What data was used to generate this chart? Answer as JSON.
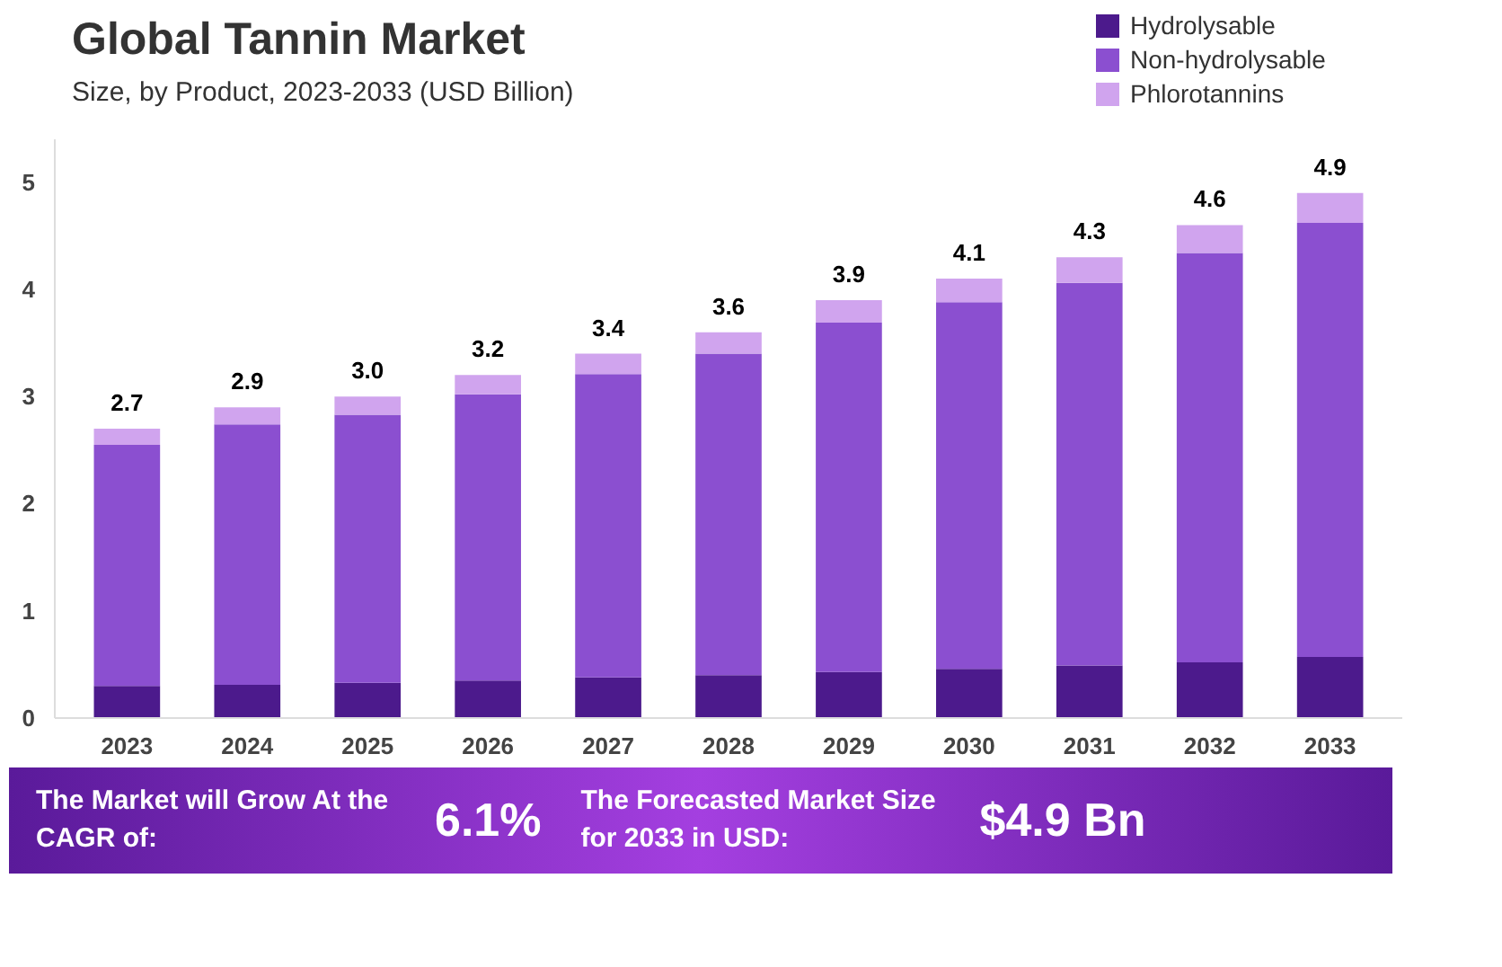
{
  "chart_data": {
    "type": "bar",
    "title": "Global Tannin Market",
    "subtitle": "Size, by Product, 2023-2033 (USD Billion)",
    "categories": [
      "2023",
      "2024",
      "2025",
      "2026",
      "2027",
      "2028",
      "2029",
      "2030",
      "2031",
      "2032",
      "2033"
    ],
    "stacked": true,
    "series": [
      {
        "name": "Hydrolysable",
        "color": "#4c1a8c",
        "values": [
          0.3,
          0.31,
          0.33,
          0.35,
          0.38,
          0.4,
          0.43,
          0.46,
          0.49,
          0.52,
          0.57
        ]
      },
      {
        "name": "Non-hydrolysable",
        "color": "#8b4fd0",
        "values": [
          2.25,
          2.43,
          2.5,
          2.67,
          2.83,
          3.0,
          3.26,
          3.42,
          3.57,
          3.82,
          4.05
        ]
      },
      {
        "name": "Phlorotannins",
        "color": "#d0a4ee",
        "values": [
          0.15,
          0.16,
          0.17,
          0.18,
          0.19,
          0.2,
          0.21,
          0.22,
          0.24,
          0.26,
          0.28
        ]
      }
    ],
    "totals": [
      "2.7",
      "2.9",
      "3.0",
      "3.2",
      "3.4",
      "3.6",
      "3.9",
      "4.1",
      "4.3",
      "4.6",
      "4.9"
    ],
    "ylim": [
      0,
      5.4
    ],
    "yticks": [
      0,
      1,
      2,
      3,
      4,
      5
    ],
    "grid": false,
    "legend": "top right",
    "annotations": [
      "The Market will Grow At the CAGR of:",
      "6.1%",
      "The Forecasted Market Size for 2033 in USD:",
      "$4.9 Bn"
    ]
  }
}
